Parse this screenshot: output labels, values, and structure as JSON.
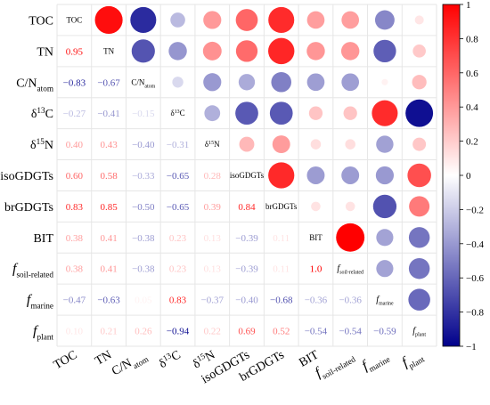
{
  "chart_data": {
    "type": "heatmap",
    "subtype": "correlation-matrix",
    "variables": [
      {
        "id": "TOC",
        "main": "TOC",
        "sub": "",
        "sup": "",
        "italic_prefix": ""
      },
      {
        "id": "TN",
        "main": "TN",
        "sub": "",
        "sup": "",
        "italic_prefix": ""
      },
      {
        "id": "CN",
        "main": "C/N",
        "sub": "atom",
        "sup": "",
        "italic_prefix": ""
      },
      {
        "id": "d13C",
        "main": "δ",
        "sup": "13",
        "main2": "C",
        "sub": "",
        "italic_prefix": ""
      },
      {
        "id": "d15N",
        "main": "δ",
        "sup": "15",
        "main2": "N",
        "sub": "",
        "italic_prefix": ""
      },
      {
        "id": "isoGDGTs",
        "main": "isoGDGTs",
        "sub": "",
        "sup": "",
        "italic_prefix": ""
      },
      {
        "id": "brGDGTs",
        "main": "brGDGTs",
        "sub": "",
        "sup": "",
        "italic_prefix": ""
      },
      {
        "id": "BIT",
        "main": "BIT",
        "sub": "",
        "sup": "",
        "italic_prefix": ""
      },
      {
        "id": "fsoil",
        "main": "",
        "sub": "soil-related",
        "sup": "",
        "italic_prefix": "f"
      },
      {
        "id": "fmarine",
        "main": "",
        "sub": "marine",
        "sup": "",
        "italic_prefix": "f"
      },
      {
        "id": "fplant",
        "main": "",
        "sub": "plant",
        "sup": "",
        "italic_prefix": "f"
      }
    ],
    "lower_triangle_labels": [
      [],
      [
        "0.95"
      ],
      [
        "−0.83",
        "−0.67"
      ],
      [
        "−0.27",
        "−0.41",
        "−0.15"
      ],
      [
        "0.40",
        "0.43",
        "−0.40",
        "−0.31"
      ],
      [
        "0.60",
        "0.58",
        "−0.33",
        "−0.65",
        "0.28"
      ],
      [
        "0.83",
        "0.85",
        "−0.50",
        "−0.65",
        "0.39",
        "0.84"
      ],
      [
        "0.38",
        "0.41",
        "−0.38",
        "0.23",
        "0.13",
        "−0.39",
        "0.11"
      ],
      [
        "0.38",
        "0.41",
        "−0.38",
        "0.23",
        "0.13",
        "−0.39",
        "0.11",
        "1.0"
      ],
      [
        "−0.47",
        "−0.63",
        "0.05",
        "0.83",
        "−0.37",
        "−0.40",
        "−0.68",
        "−0.36",
        "−0.36"
      ],
      [
        "0.10",
        "0.21",
        "0.26",
        "−0.94",
        "0.22",
        "0.69",
        "0.52",
        "−0.54",
        "−0.54",
        "−0.59"
      ]
    ],
    "colorbar": {
      "min": -1,
      "max": 1,
      "ticks": [
        "1",
        "0.8",
        "0.6",
        "0.4",
        "0.2",
        "0",
        "−0.2",
        "−0.4",
        "−0.6",
        "−0.8",
        "−1"
      ],
      "colors": {
        "negative": "#00008b",
        "zero": "#ffffff",
        "positive": "#ff0000"
      }
    },
    "grid": true,
    "upper_triangle_shape": "circle",
    "circle_size_encodes": "absolute correlation"
  }
}
